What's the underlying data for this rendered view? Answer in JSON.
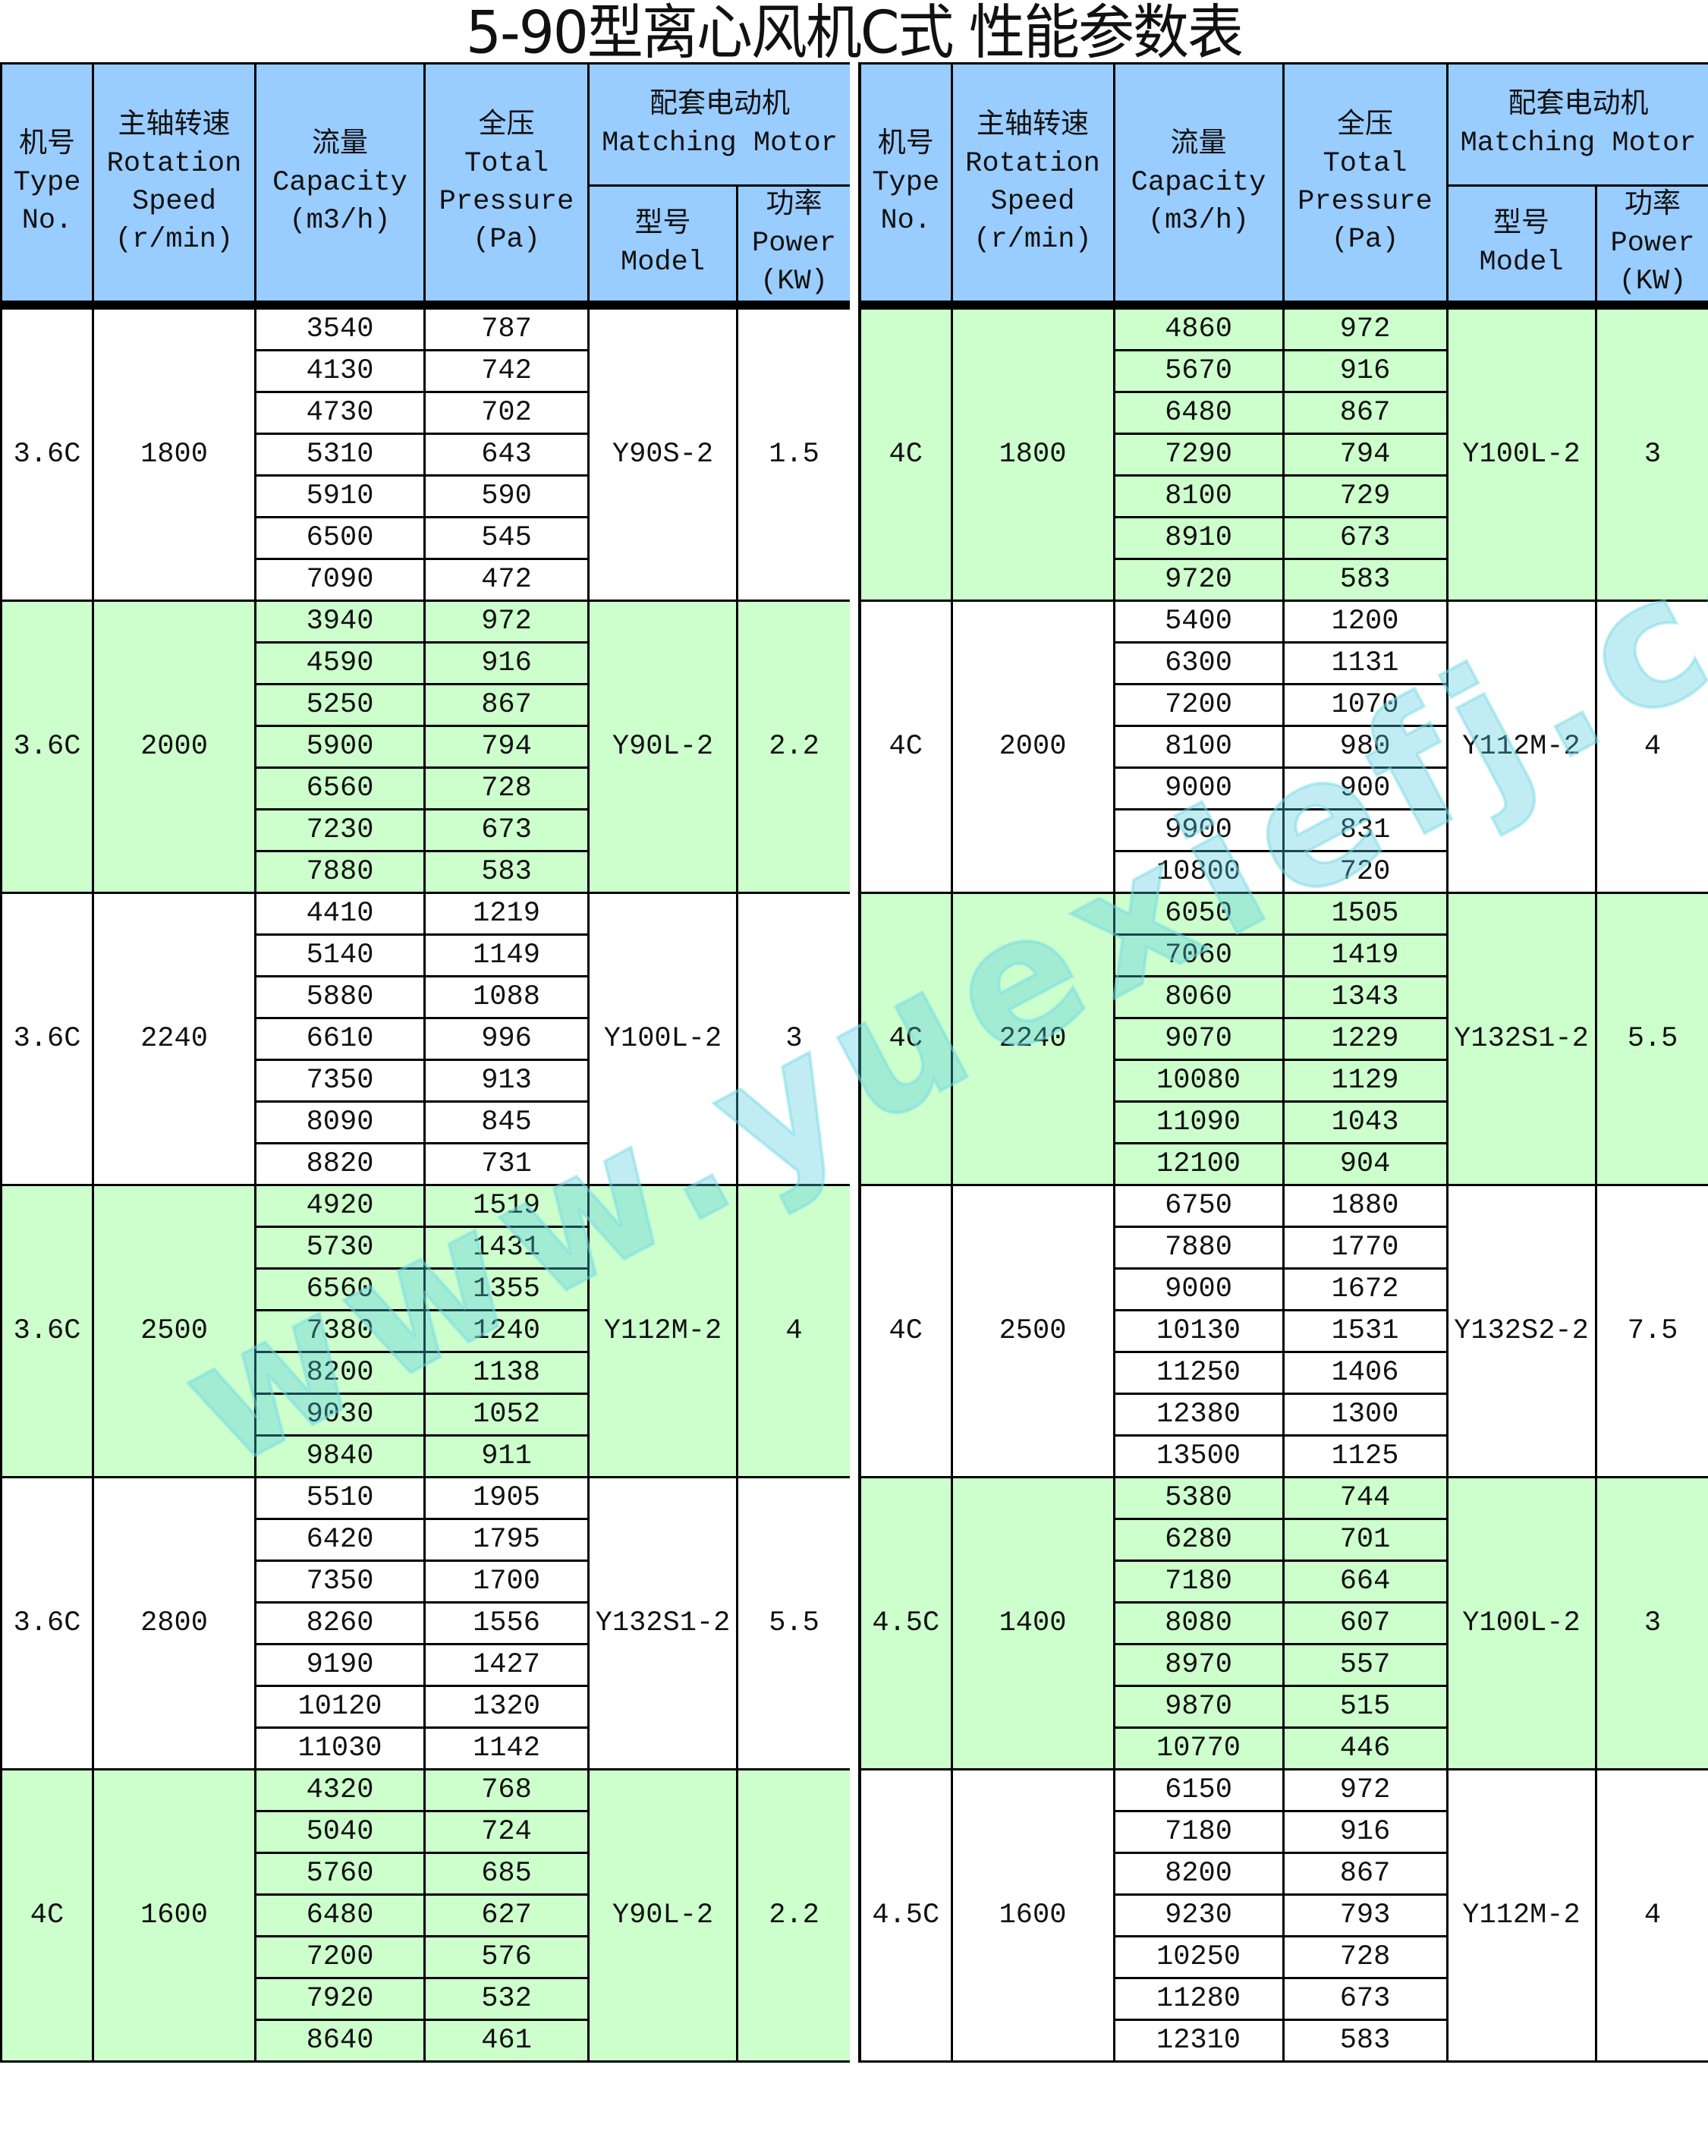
{
  "title": "5-90型离心风机C式 性能参数表",
  "headers": {
    "type": "机号\nType\nNo.",
    "speed": "主轴转速\nRotation\nSpeed\n(r/min)",
    "capacity": "流量\nCapacity\n(m3/h)",
    "pressure": "全压\nTotal\nPressure\n(Pa)",
    "motor": "配套电动机\nMatching Motor",
    "model": "型号\nModel",
    "power": "功率\nPower\n(KW)"
  },
  "watermark": "www.yuexiefj.com",
  "colors": {
    "header": "#99ccff",
    "green": "#ccffcc",
    "white": "#ffffff"
  },
  "left": [
    {
      "type": "3.6C",
      "speed": "1800",
      "flow": [
        "3540",
        "4130",
        "4730",
        "5310",
        "5910",
        "6500",
        "7090"
      ],
      "pressure": [
        "787",
        "742",
        "702",
        "643",
        "590",
        "545",
        "472"
      ],
      "model": "Y90S-2",
      "power": "1.5",
      "bg": "white"
    },
    {
      "type": "3.6C",
      "speed": "2000",
      "flow": [
        "3940",
        "4590",
        "5250",
        "5900",
        "6560",
        "7230",
        "7880"
      ],
      "pressure": [
        "972",
        "916",
        "867",
        "794",
        "728",
        "673",
        "583"
      ],
      "model": "Y90L-2",
      "power": "2.2",
      "bg": "green"
    },
    {
      "type": "3.6C",
      "speed": "2240",
      "flow": [
        "4410",
        "5140",
        "5880",
        "6610",
        "7350",
        "8090",
        "8820"
      ],
      "pressure": [
        "1219",
        "1149",
        "1088",
        "996",
        "913",
        "845",
        "731"
      ],
      "model": "Y100L-2",
      "power": "3",
      "bg": "white"
    },
    {
      "type": "3.6C",
      "speed": "2500",
      "flow": [
        "4920",
        "5730",
        "6560",
        "7380",
        "8200",
        "9030",
        "9840"
      ],
      "pressure": [
        "1519",
        "1431",
        "1355",
        "1240",
        "1138",
        "1052",
        "911"
      ],
      "model": "Y112M-2",
      "power": "4",
      "bg": "green"
    },
    {
      "type": "3.6C",
      "speed": "2800",
      "flow": [
        "5510",
        "6420",
        "7350",
        "8260",
        "9190",
        "10120",
        "11030"
      ],
      "pressure": [
        "1905",
        "1795",
        "1700",
        "1556",
        "1427",
        "1320",
        "1142"
      ],
      "model": "Y132S1-2",
      "power": "5.5",
      "bg": "white"
    },
    {
      "type": "4C",
      "speed": "1600",
      "flow": [
        "4320",
        "5040",
        "5760",
        "6480",
        "7200",
        "7920",
        "8640"
      ],
      "pressure": [
        "768",
        "724",
        "685",
        "627",
        "576",
        "532",
        "461"
      ],
      "model": "Y90L-2",
      "power": "2.2",
      "bg": "green"
    }
  ],
  "right": [
    {
      "type": "4C",
      "speed": "1800",
      "flow": [
        "4860",
        "5670",
        "6480",
        "7290",
        "8100",
        "8910",
        "9720"
      ],
      "pressure": [
        "972",
        "916",
        "867",
        "794",
        "729",
        "673",
        "583"
      ],
      "model": "Y100L-2",
      "power": "3",
      "bg": "green"
    },
    {
      "type": "4C",
      "speed": "2000",
      "flow": [
        "5400",
        "6300",
        "7200",
        "8100",
        "9000",
        "9900",
        "10800"
      ],
      "pressure": [
        "1200",
        "1131",
        "1070",
        "980",
        "900",
        "831",
        "720"
      ],
      "model": "Y112M-2",
      "power": "4",
      "bg": "white"
    },
    {
      "type": "4C",
      "speed": "2240",
      "flow": [
        "6050",
        "7060",
        "8060",
        "9070",
        "10080",
        "11090",
        "12100"
      ],
      "pressure": [
        "1505",
        "1419",
        "1343",
        "1229",
        "1129",
        "1043",
        "904"
      ],
      "model": "Y132S1-2",
      "power": "5.5",
      "bg": "green"
    },
    {
      "type": "4C",
      "speed": "2500",
      "flow": [
        "6750",
        "7880",
        "9000",
        "10130",
        "11250",
        "12380",
        "13500"
      ],
      "pressure": [
        "1880",
        "1770",
        "1672",
        "1531",
        "1406",
        "1300",
        "1125"
      ],
      "model": "Y132S2-2",
      "power": "7.5",
      "bg": "white"
    },
    {
      "type": "4.5C",
      "speed": "1400",
      "flow": [
        "5380",
        "6280",
        "7180",
        "8080",
        "8970",
        "9870",
        "10770"
      ],
      "pressure": [
        "744",
        "701",
        "664",
        "607",
        "557",
        "515",
        "446"
      ],
      "model": "Y100L-2",
      "power": "3",
      "bg": "green"
    },
    {
      "type": "4.5C",
      "speed": "1600",
      "flow": [
        "6150",
        "7180",
        "8200",
        "9230",
        "10250",
        "11280",
        "12310"
      ],
      "pressure": [
        "972",
        "916",
        "867",
        "793",
        "728",
        "673",
        "583"
      ],
      "model": "Y112M-2",
      "power": "4",
      "bg": "white"
    }
  ]
}
